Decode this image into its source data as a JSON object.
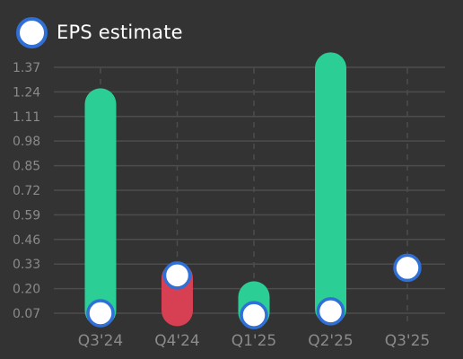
{
  "legend": {
    "label": "EPS estimate"
  },
  "colors": {
    "background": "#333333",
    "grid": "#4d4d4d",
    "tick_text": "#8a8a8a",
    "beat": "#2bcf96",
    "miss": "#d64052",
    "marker_fill": "#ffffff",
    "marker_border": "#2f6fd6"
  },
  "chart_data": {
    "type": "bar",
    "title": "",
    "xlabel": "",
    "ylabel": "",
    "ylim": [
      0,
      1.45
    ],
    "yticks": [
      "0.07",
      "0.20",
      "0.33",
      "0.46",
      "0.59",
      "0.72",
      "0.85",
      "0.98",
      "1.11",
      "1.24",
      "1.37"
    ],
    "categories": [
      "Q3'24",
      "Q4'24",
      "Q1'25",
      "Q2'25",
      "Q3'25"
    ],
    "series": [
      {
        "name": "EPS estimate",
        "values": [
          0.07,
          0.27,
          0.06,
          0.08,
          0.31
        ]
      },
      {
        "values": [
          1.19,
          0.07,
          0.17,
          1.38,
          null
        ]
      }
    ],
    "grid": true,
    "legend_position": "top-left"
  }
}
